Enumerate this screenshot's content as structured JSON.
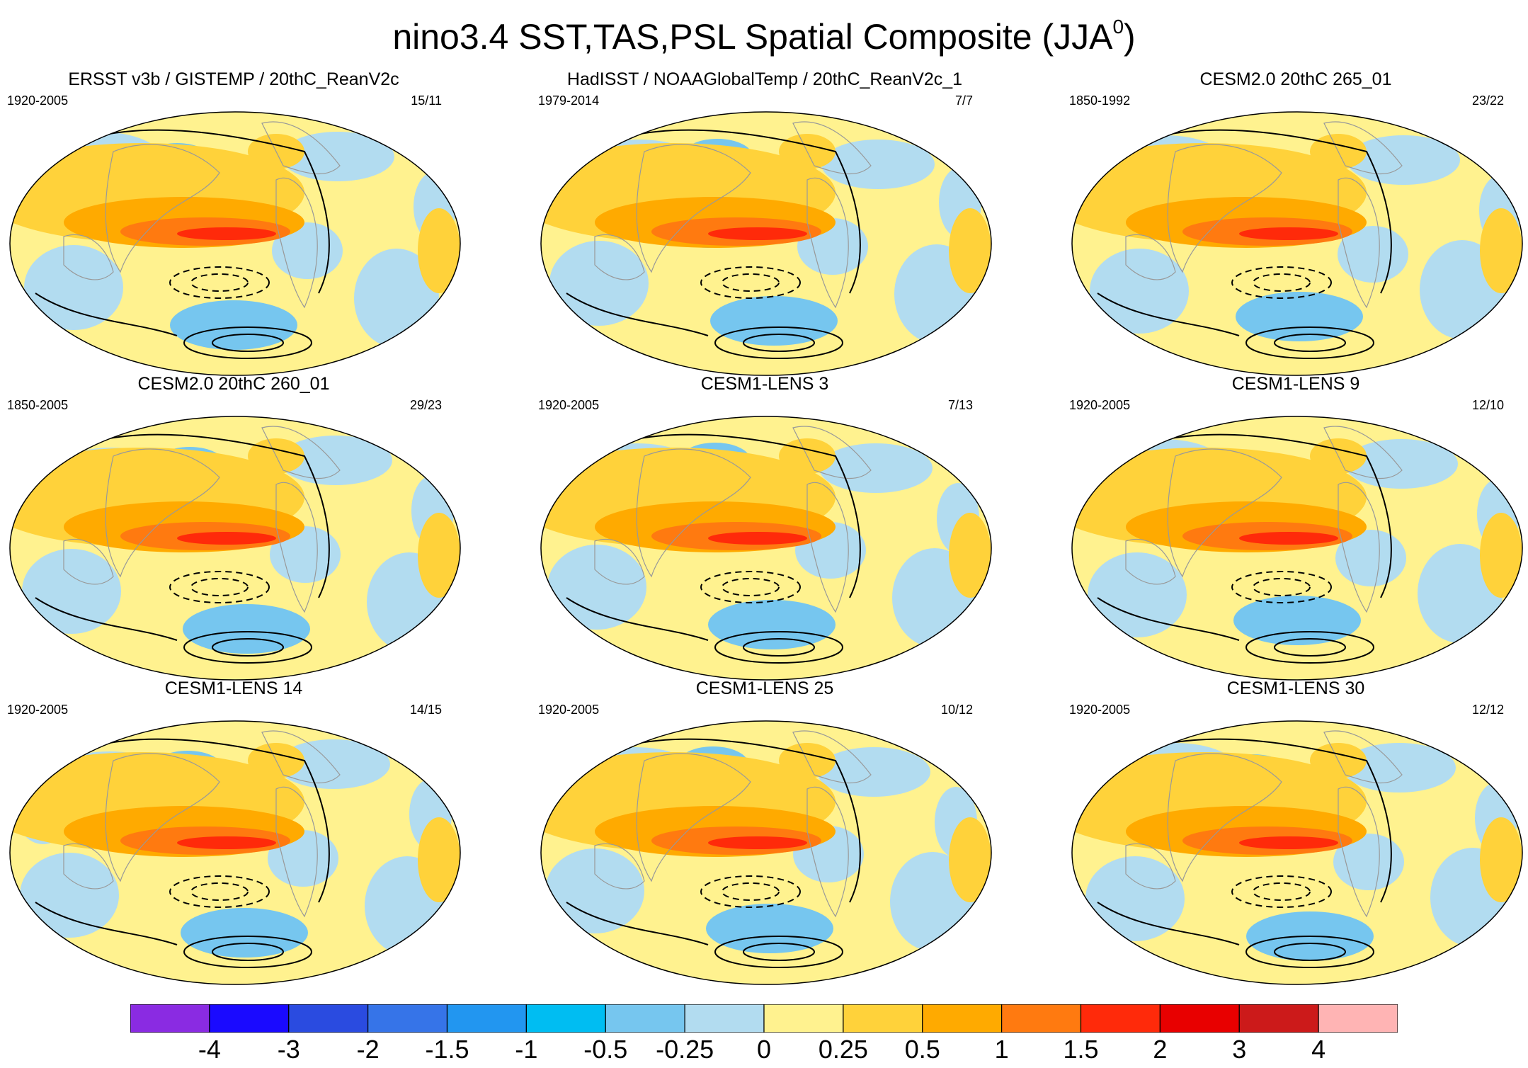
{
  "title": "nino3.4 SST,TAS,PSL Spatial Composite (JJA",
  "title_superscript": "0",
  "chart_data": {
    "type": "map-composite",
    "variables": [
      "SST",
      "TAS",
      "PSL"
    ],
    "index": "nino3.4",
    "season": "JJA",
    "shading": "SST/TAS anomaly composite",
    "contours": "PSL anomaly (solid positive, dashed negative)",
    "panels": [
      {
        "title": "ERSST v3b / GISTEMP / 20thC_ReanV2c",
        "years": "1920-2005",
        "counts": "15/11"
      },
      {
        "title": "HadISST / NOAAGlobalTemp / 20thC_ReanV2c_1",
        "years": "1979-2014",
        "counts": "7/7"
      },
      {
        "title": "CESM2.0 20thC 265_01",
        "years": "1850-1992",
        "counts": "23/22"
      },
      {
        "title": "CESM2.0 20thC 260_01",
        "years": "1850-2005",
        "counts": "29/23"
      },
      {
        "title": "CESM1-LENS 3",
        "years": "1920-2005",
        "counts": "7/13"
      },
      {
        "title": "CESM1-LENS 9",
        "years": "1920-2005",
        "counts": "12/10"
      },
      {
        "title": "CESM1-LENS 14",
        "years": "1920-2005",
        "counts": "14/15"
      },
      {
        "title": "CESM1-LENS 25",
        "years": "1920-2005",
        "counts": "10/12"
      },
      {
        "title": "CESM1-LENS 30",
        "years": "1920-2005",
        "counts": "12/12"
      }
    ],
    "colorbar": {
      "labels": [
        "-4",
        "-3",
        "-2",
        "-1.5",
        "-1",
        "-0.5",
        "-0.25",
        "0",
        "0.25",
        "0.5",
        "1",
        "1.5",
        "2",
        "3",
        "4"
      ],
      "colors": [
        "#8a2be2",
        "#1a0aff",
        "#2a4be0",
        "#3674e8",
        "#2296f0",
        "#00bdf2",
        "#76c6ef",
        "#b2dcf0",
        "#fff28f",
        "#ffd23a",
        "#ffaa00",
        "#ff7a10",
        "#ff2a0a",
        "#e80000",
        "#cc1a1a",
        "#ffb4b4"
      ]
    }
  }
}
